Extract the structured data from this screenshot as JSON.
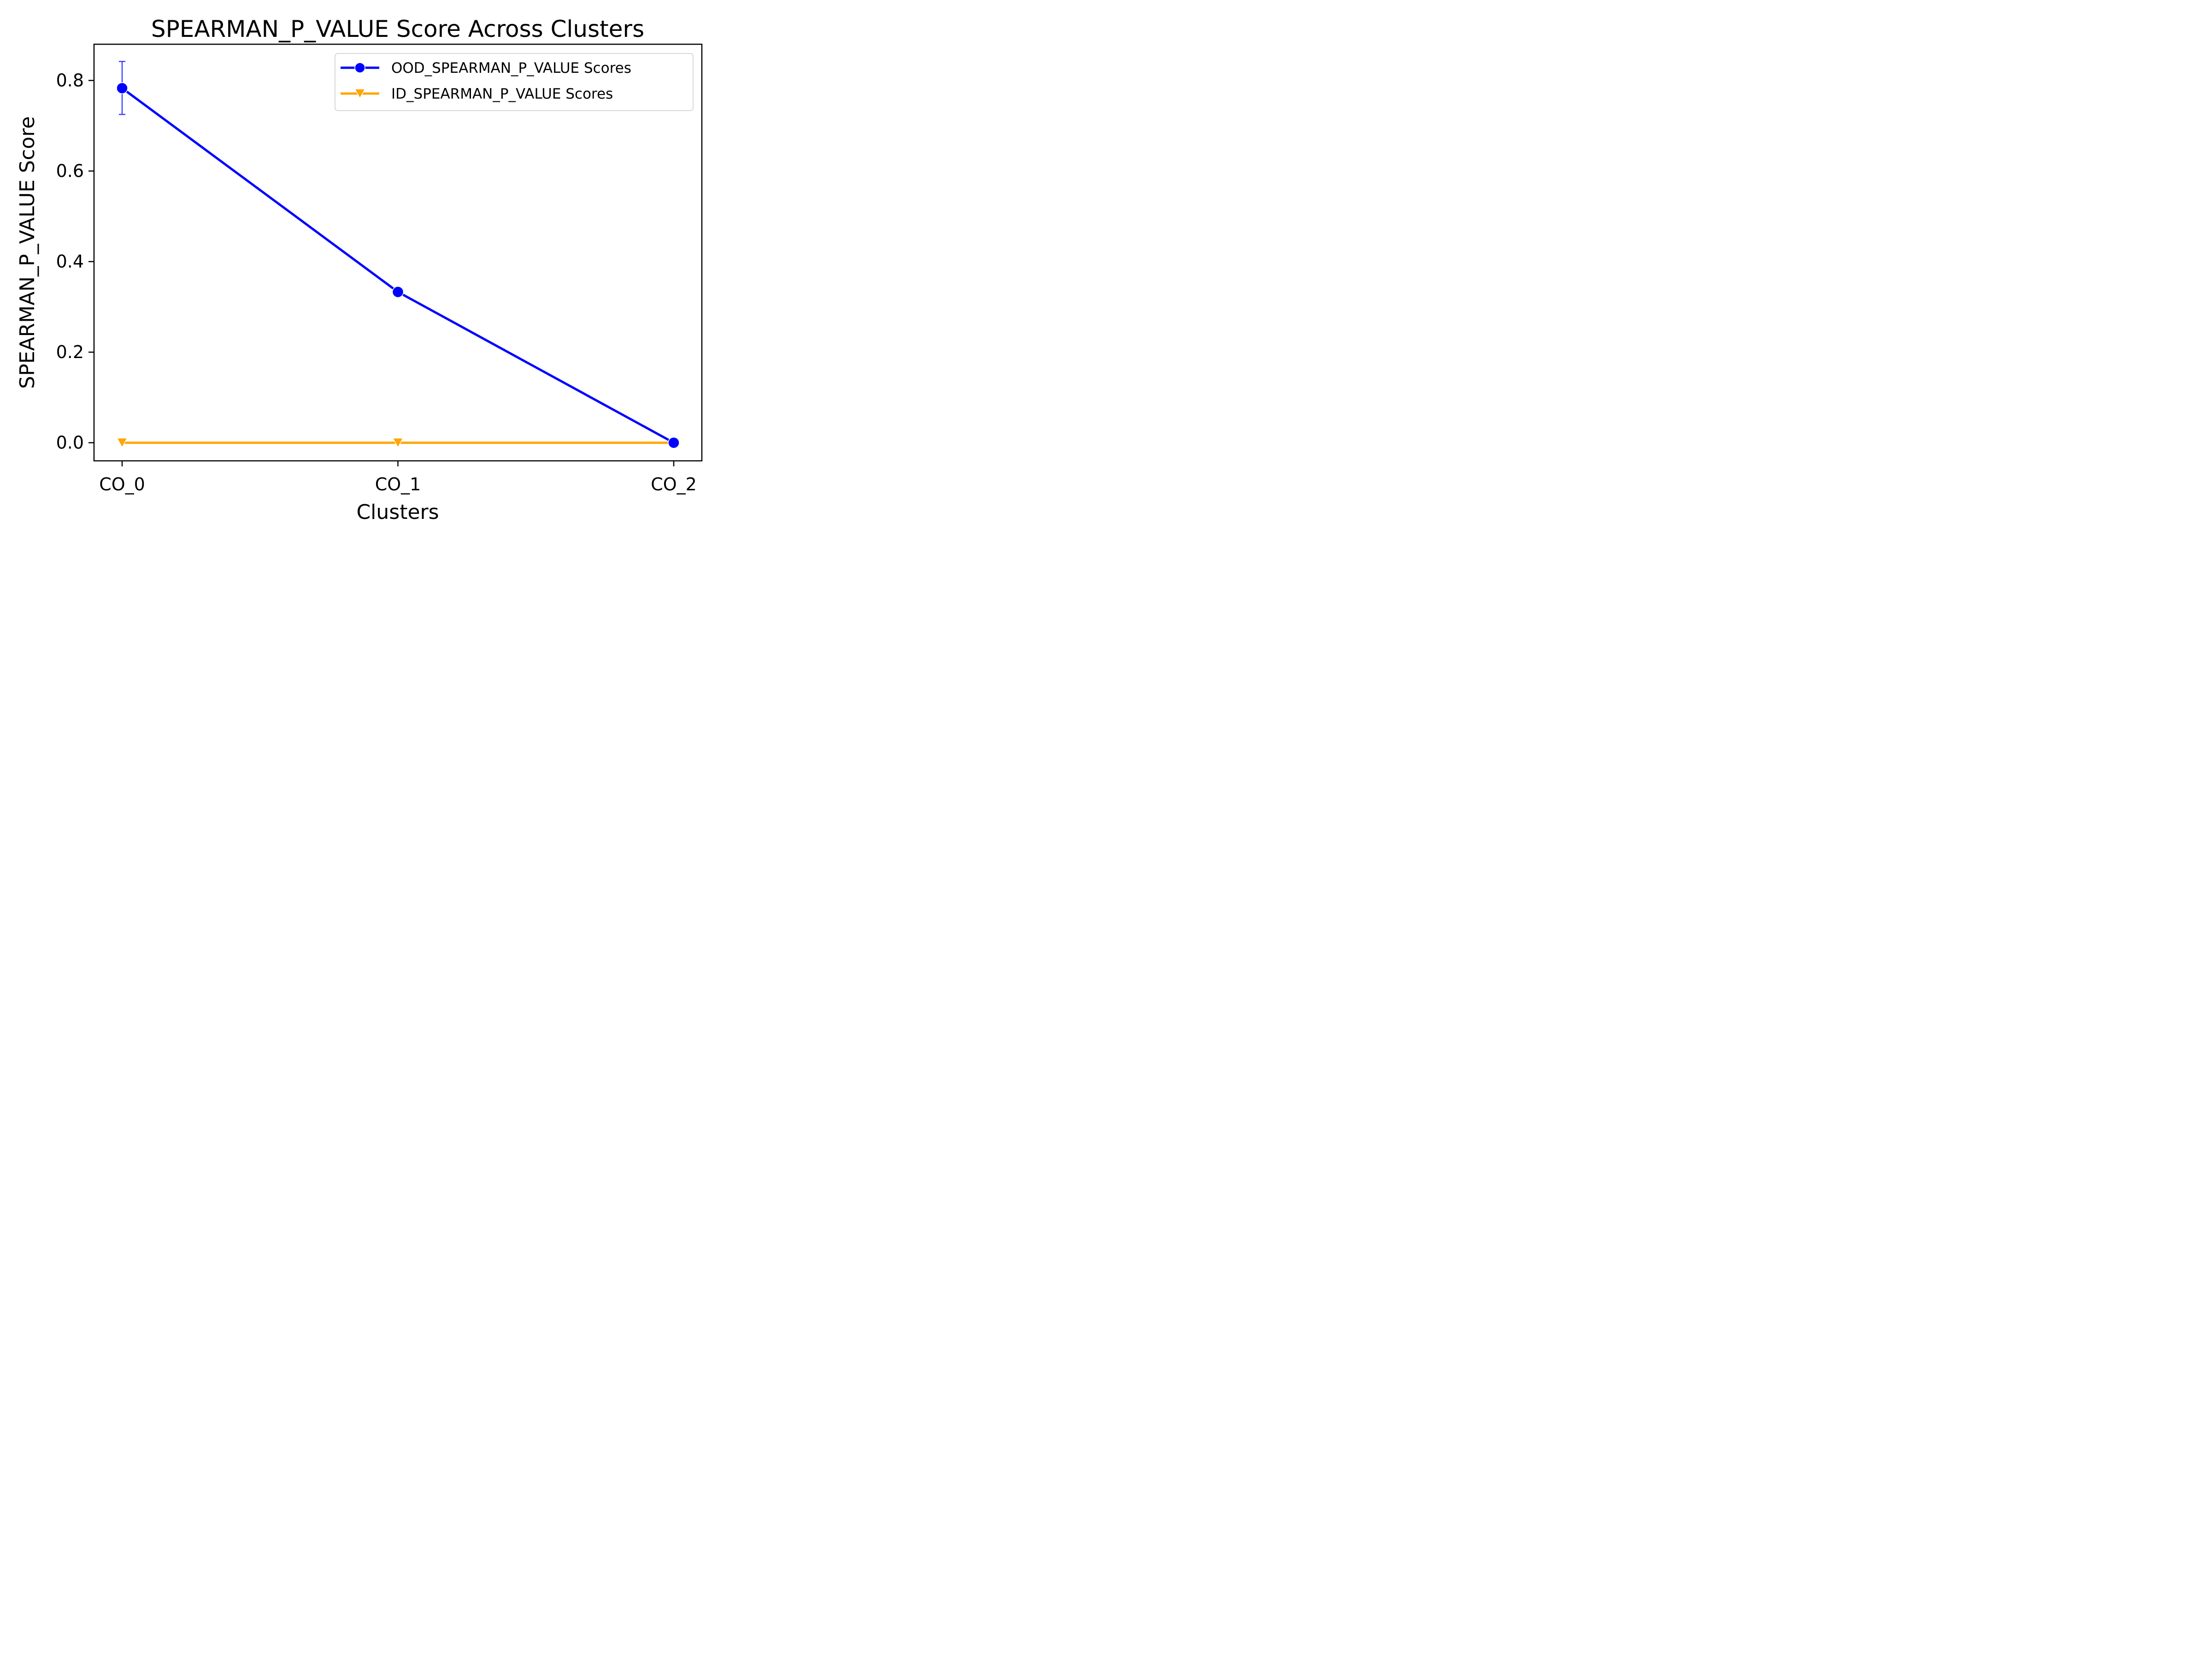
{
  "chart_data": {
    "type": "line",
    "title": "SPEARMAN_P_VALUE Score Across Clusters",
    "xlabel": "Clusters",
    "ylabel": "SPEARMAN_P_VALUE Score",
    "categories": [
      "CO_0",
      "CO_1",
      "CO_2"
    ],
    "ylim": [
      -0.04,
      0.88
    ],
    "yticks": [
      0.0,
      0.2,
      0.4,
      0.6,
      0.8
    ],
    "ytick_labels": [
      "0.0",
      "0.2",
      "0.4",
      "0.6",
      "0.8"
    ],
    "grid": false,
    "legend_position": "top-right",
    "series": [
      {
        "name": "OOD_SPEARMAN_P_VALUE Scores",
        "values": [
          0.783,
          0.333,
          0.0
        ],
        "error_low": [
          0.725,
          0.333,
          0.0
        ],
        "error_high": [
          0.842,
          0.333,
          0.0
        ],
        "color": "#0000ff",
        "marker": "circle"
      },
      {
        "name": "ID_SPEARMAN_P_VALUE Scores",
        "values": [
          0.0,
          0.0,
          0.0
        ],
        "color": "#ffa500",
        "marker": "triangle-down"
      }
    ]
  }
}
